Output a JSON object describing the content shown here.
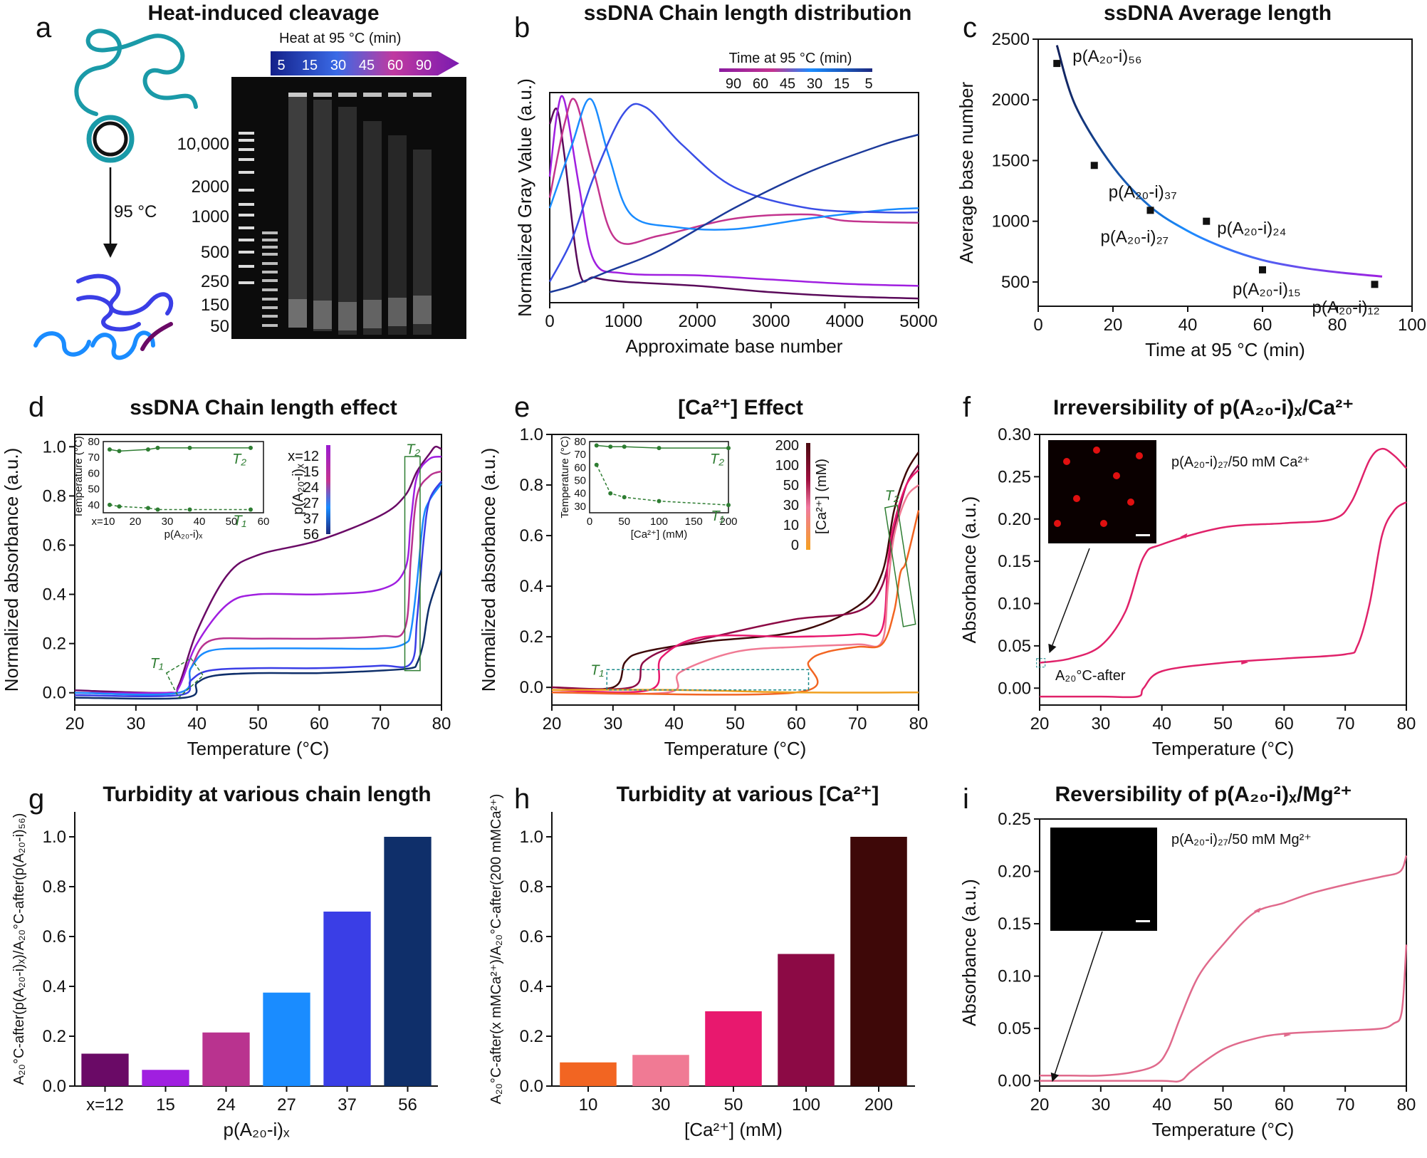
{
  "panels": {
    "a": {
      "label": "a",
      "title": "Heat-induced cleavage",
      "heat_label": "Heat at 95 °C (min)",
      "heat_times": [
        "5",
        "15",
        "30",
        "45",
        "60",
        "90"
      ],
      "arrow_label": "95 °C",
      "ladder": [
        "10,000",
        "2000",
        "1000",
        "500",
        "250",
        "150",
        "50"
      ]
    },
    "b": {
      "label": "b",
      "title": "ssDNA Chain length distribution"
    },
    "c": {
      "label": "c",
      "title": "ssDNA Average length"
    },
    "d": {
      "label": "d",
      "title": "ssDNA Chain length effect"
    },
    "e": {
      "label": "e",
      "title": "[Ca²⁺] Effect"
    },
    "f": {
      "label": "f",
      "title": "Irreversibility of p(A₂₀-i)ₓ/Ca²⁺",
      "annotation": "p(A₂₀-i)₂₇/50 mM Ca²⁺",
      "marker": "A₂₀°C-after"
    },
    "g": {
      "label": "g",
      "title": "Turbidity at various chain length"
    },
    "h": {
      "label": "h",
      "title": "Turbidity at various [Ca²⁺]"
    },
    "i": {
      "label": "i",
      "title": "Reversibility of p(A₂₀-i)ₓ/Mg²⁺",
      "annotation": "p(A₂₀-i)₂₇/50 mM Mg²⁺"
    }
  },
  "colors": {
    "len": [
      "#6a0a66",
      "#a01fe0",
      "#b9338f",
      "#1a8cff",
      "#3a3ee6",
      "#0f2f6a"
    ],
    "ca": [
      "#f26522",
      "#f07a94",
      "#e8186e",
      "#8c0a45",
      "#3e0808"
    ],
    "b_curves": [
      "#5a0a5a",
      "#a01fe0",
      "#c3348e",
      "#1a8cff",
      "#3a4ee6",
      "#1c3a9a"
    ],
    "f_curve": "#e0226a",
    "i_curve": "#e06a8c",
    "inset_green": "#2e7d32"
  },
  "chart_data": [
    {
      "id": "b",
      "type": "line",
      "xlabel": "Approximate base number",
      "ylabel": "Normalized Gray Value (a.u.)",
      "xlim": [
        0,
        5000
      ],
      "xticks": [
        0,
        1000,
        2000,
        3000,
        4000,
        5000
      ],
      "legend_title": "Time at 95 °C (min)",
      "legend_ticks": [
        "90",
        "60",
        "45",
        "30",
        "15",
        "5"
      ],
      "legend_position": "top-right",
      "series": [
        {
          "name": "90",
          "x": [
            0,
            100,
            200,
            400,
            600,
            1000,
            2000,
            3000,
            4000,
            5000
          ],
          "y": [
            0.85,
            0.92,
            0.7,
            0.15,
            0.12,
            0.1,
            0.08,
            0.05,
            0.03,
            0.02
          ]
        },
        {
          "name": "60",
          "x": [
            0,
            100,
            200,
            400,
            600,
            1000,
            2000,
            3000,
            4000,
            5000
          ],
          "y": [
            0.6,
            0.9,
            0.96,
            0.55,
            0.2,
            0.14,
            0.13,
            0.11,
            0.09,
            0.08
          ]
        },
        {
          "name": "45",
          "x": [
            0,
            200,
            350,
            600,
            900,
            1500,
            2500,
            3500,
            4000,
            5000
          ],
          "y": [
            0.5,
            0.85,
            0.96,
            0.62,
            0.3,
            0.32,
            0.4,
            0.42,
            0.39,
            0.38
          ]
        },
        {
          "name": "30",
          "x": [
            0,
            300,
            550,
            800,
            1100,
            1700,
            2500,
            3500,
            4500,
            5000
          ],
          "y": [
            0.45,
            0.75,
            0.97,
            0.7,
            0.42,
            0.36,
            0.35,
            0.4,
            0.44,
            0.45
          ]
        },
        {
          "name": "15",
          "x": [
            0,
            300,
            600,
            1000,
            1300,
            1800,
            2500,
            3500,
            4500,
            5000
          ],
          "y": [
            0.1,
            0.3,
            0.6,
            0.9,
            0.93,
            0.75,
            0.55,
            0.45,
            0.43,
            0.43
          ]
        },
        {
          "name": "5",
          "x": [
            0,
            300,
            800,
            1500,
            2500,
            3500,
            4500,
            5000
          ],
          "y": [
            0.05,
            0.08,
            0.15,
            0.25,
            0.45,
            0.62,
            0.75,
            0.8
          ]
        }
      ]
    },
    {
      "id": "c",
      "type": "scatter",
      "xlabel": "Time at 95 °C (min)",
      "ylabel": "Average base number",
      "xlim": [
        0,
        100
      ],
      "ylim": [
        300,
        2500
      ],
      "xticks": [
        0,
        20,
        40,
        60,
        80,
        100
      ],
      "yticks": [
        500,
        1000,
        1500,
        2000,
        2500
      ],
      "points": [
        {
          "x": 5,
          "y": 2300,
          "label": "p(A₂₀-i)₅₆"
        },
        {
          "x": 15,
          "y": 1460,
          "label": "p(A₂₀-i)₃₇"
        },
        {
          "x": 30,
          "y": 1090,
          "label": "p(A₂₀-i)₂₇"
        },
        {
          "x": 45,
          "y": 1000,
          "label": "p(A₂₀-i)₂₄"
        },
        {
          "x": 60,
          "y": 600,
          "label": "p(A₂₀-i)₁₅"
        },
        {
          "x": 90,
          "y": 480,
          "label": "p(A₂₀-i)₁₂"
        }
      ],
      "fit": {
        "x": [
          5,
          10,
          20,
          30,
          40,
          50,
          60,
          70,
          80,
          92
        ],
        "y": [
          2450,
          1950,
          1450,
          1120,
          920,
          780,
          680,
          620,
          580,
          545
        ]
      }
    },
    {
      "id": "d",
      "type": "line",
      "xlabel": "Temperature (°C)",
      "ylabel": "Normalized absorbance (a.u.)",
      "xlim": [
        20,
        80
      ],
      "ylim": [
        -0.05,
        1.05
      ],
      "xticks": [
        20,
        30,
        40,
        50,
        60,
        70,
        80
      ],
      "yticks": [
        0.0,
        0.2,
        0.4,
        0.6,
        0.8,
        1.0
      ],
      "legend_title": "p(A₂₀-i)ₓ",
      "legend_ticks": [
        "x=12",
        "15",
        "24",
        "27",
        "37",
        "56"
      ],
      "region_labels": [
        "T₁",
        "T₂"
      ],
      "series": [
        {
          "name": "x=12",
          "x": [
            20,
            35,
            37,
            40,
            45,
            50,
            60,
            70,
            74,
            76,
            78,
            79,
            80
          ],
          "y": [
            0.01,
            0.0,
            0.03,
            0.25,
            0.48,
            0.56,
            0.62,
            0.72,
            0.8,
            0.9,
            0.97,
            1.0,
            0.99
          ]
        },
        {
          "name": "15",
          "x": [
            20,
            35,
            37,
            40,
            45,
            50,
            60,
            70,
            74,
            75,
            76,
            78,
            80
          ],
          "y": [
            0.0,
            0.0,
            0.02,
            0.2,
            0.36,
            0.4,
            0.4,
            0.42,
            0.5,
            0.7,
            0.88,
            0.95,
            0.96
          ]
        },
        {
          "name": "24",
          "x": [
            20,
            37,
            39,
            42,
            50,
            60,
            70,
            74,
            75,
            76,
            78,
            80
          ],
          "y": [
            0.0,
            0.0,
            0.1,
            0.21,
            0.22,
            0.22,
            0.23,
            0.26,
            0.55,
            0.8,
            0.88,
            0.9
          ]
        },
        {
          "name": "27",
          "x": [
            20,
            37,
            39,
            42,
            50,
            60,
            70,
            74,
            75,
            76,
            77,
            78,
            80
          ],
          "y": [
            0.0,
            0.0,
            0.1,
            0.17,
            0.18,
            0.18,
            0.18,
            0.2,
            0.25,
            0.45,
            0.7,
            0.78,
            0.85
          ]
        },
        {
          "name": "37",
          "x": [
            20,
            37,
            39,
            42,
            50,
            60,
            70,
            75,
            76,
            77,
            78,
            80
          ],
          "y": [
            -0.01,
            -0.01,
            0.05,
            0.09,
            0.1,
            0.1,
            0.11,
            0.12,
            0.3,
            0.6,
            0.78,
            0.86
          ]
        },
        {
          "name": "56",
          "x": [
            20,
            38,
            40,
            43,
            50,
            60,
            70,
            75,
            76,
            77,
            78,
            80
          ],
          "y": [
            -0.02,
            -0.02,
            0.04,
            0.07,
            0.08,
            0.08,
            0.09,
            0.1,
            0.12,
            0.2,
            0.35,
            0.5
          ]
        }
      ],
      "inset": {
        "xlabel": "p(A₂₀-i)ₓ",
        "ylabel": "Temperature (°C)",
        "xlim": [
          10,
          60
        ],
        "ylim": [
          35,
          80
        ],
        "xticks": [
          "x=10",
          "20",
          "30",
          "40",
          "50",
          "60"
        ],
        "yticks": [
          40,
          50,
          60,
          70,
          80
        ],
        "T2": {
          "label": "T₂",
          "x": [
            12,
            15,
            24,
            27,
            37,
            56
          ],
          "y": [
            75,
            74,
            75,
            76,
            76,
            76
          ]
        },
        "T1": {
          "label": "T₁",
          "x": [
            12,
            15,
            24,
            27,
            37,
            56
          ],
          "y": [
            40,
            39,
            38,
            37,
            37,
            37
          ]
        }
      }
    },
    {
      "id": "e",
      "type": "line",
      "xlabel": "Temperature (°C)",
      "ylabel": "Normalized absorbance (a.u.)",
      "xlim": [
        20,
        80
      ],
      "ylim": [
        -0.07,
        1.0
      ],
      "xticks": [
        20,
        30,
        40,
        50,
        60,
        70,
        80
      ],
      "yticks": [
        0.0,
        0.2,
        0.4,
        0.6,
        0.8,
        1.0
      ],
      "legend_title": "[Ca²⁺] (mM)",
      "legend_ticks": [
        "200",
        "100",
        "50",
        "30",
        "10",
        "0"
      ],
      "region_labels": [
        "T₁",
        "T₂"
      ],
      "series": [
        {
          "name": "200",
          "x": [
            20,
            30,
            32,
            35,
            45,
            60,
            70,
            74,
            76,
            78,
            80
          ],
          "y": [
            0.0,
            0.0,
            0.1,
            0.14,
            0.18,
            0.22,
            0.32,
            0.45,
            0.7,
            0.85,
            0.93
          ]
        },
        {
          "name": "100",
          "x": [
            20,
            33,
            35,
            40,
            50,
            60,
            70,
            74,
            76,
            78,
            80
          ],
          "y": [
            0.0,
            0.0,
            0.1,
            0.16,
            0.22,
            0.27,
            0.3,
            0.4,
            0.62,
            0.8,
            0.88
          ]
        },
        {
          "name": "50",
          "x": [
            20,
            36,
            38,
            45,
            60,
            70,
            74,
            75,
            76,
            78,
            80
          ],
          "y": [
            -0.01,
            -0.01,
            0.12,
            0.2,
            0.2,
            0.21,
            0.23,
            0.5,
            0.65,
            0.8,
            0.86
          ]
        },
        {
          "name": "30",
          "x": [
            20,
            39,
            41,
            50,
            60,
            70,
            74,
            75,
            76,
            78,
            80
          ],
          "y": [
            -0.02,
            -0.02,
            0.06,
            0.14,
            0.16,
            0.17,
            0.18,
            0.4,
            0.6,
            0.75,
            0.8
          ]
        },
        {
          "name": "10",
          "x": [
            20,
            60,
            62,
            65,
            70,
            74,
            76,
            77,
            78,
            80
          ],
          "y": [
            -0.02,
            -0.02,
            0.1,
            0.14,
            0.16,
            0.17,
            0.3,
            0.45,
            0.5,
            0.7
          ]
        },
        {
          "name": "0",
          "x": [
            20,
            40,
            60,
            80
          ],
          "y": [
            -0.01,
            -0.01,
            -0.02,
            -0.02
          ]
        }
      ],
      "inset": {
        "xlabel": "[Ca²⁺] (mM)",
        "ylabel": "Temperature (°C)",
        "xlim": [
          0,
          200
        ],
        "ylim": [
          25,
          80
        ],
        "xticks": [
          "0",
          "50",
          "100",
          "150",
          "200"
        ],
        "yticks": [
          30,
          40,
          50,
          60,
          70,
          80
        ],
        "T2": {
          "label": "T₂",
          "x": [
            10,
            30,
            50,
            100,
            200
          ],
          "y": [
            77,
            76,
            76,
            75,
            75
          ]
        },
        "T1": {
          "label": "T₁",
          "x": [
            10,
            30,
            50,
            100,
            200
          ],
          "y": [
            62,
            40,
            37,
            34,
            31
          ]
        }
      }
    },
    {
      "id": "f",
      "type": "line",
      "xlabel": "Temperature (°C)",
      "ylabel": "Absorbance (a.u.)",
      "xlim": [
        20,
        80
      ],
      "ylim": [
        -0.02,
        0.3
      ],
      "xticks": [
        20,
        30,
        40,
        50,
        60,
        70,
        80
      ],
      "yticks": [
        0.0,
        0.05,
        0.1,
        0.15,
        0.2,
        0.25,
        0.3
      ],
      "heating": {
        "x": [
          20,
          30,
          36,
          37,
          40,
          50,
          60,
          70,
          72,
          74,
          76,
          78,
          80
        ],
        "y": [
          -0.01,
          -0.01,
          -0.01,
          0.0,
          0.02,
          0.03,
          0.035,
          0.04,
          0.05,
          0.1,
          0.18,
          0.21,
          0.22
        ]
      },
      "cooling": {
        "x": [
          80,
          78,
          76,
          74,
          71,
          68,
          60,
          50,
          40,
          37,
          34,
          30,
          25,
          20
        ],
        "y": [
          0.26,
          0.275,
          0.283,
          0.27,
          0.22,
          0.2,
          0.195,
          0.19,
          0.17,
          0.155,
          0.09,
          0.05,
          0.035,
          0.03
        ]
      }
    },
    {
      "id": "g",
      "type": "bar",
      "xlabel": "p(A₂₀-i)ₓ",
      "ylabel": "A₂₀°C-after(p(A₂₀-i)ₓ)/A₂₀°C-after(p(A₂₀-i)₅₆)",
      "categories": [
        "x=12",
        "15",
        "24",
        "27",
        "37",
        "56"
      ],
      "values": [
        0.13,
        0.065,
        0.215,
        0.375,
        0.7,
        1.0
      ],
      "ylim": [
        0,
        1.1
      ],
      "yticks": [
        0.0,
        0.2,
        0.4,
        0.6,
        0.8,
        1.0
      ]
    },
    {
      "id": "h",
      "type": "bar",
      "xlabel": "[Ca²⁺] (mM)",
      "ylabel": "A₂₀°C-after(x mMCa²⁺)/A₂₀°C-after(200 mMCa²⁺)",
      "categories": [
        "10",
        "30",
        "50",
        "100",
        "200"
      ],
      "values": [
        0.095,
        0.125,
        0.3,
        0.53,
        1.0
      ],
      "ylim": [
        0,
        1.1
      ],
      "yticks": [
        0.0,
        0.2,
        0.4,
        0.6,
        0.8,
        1.0
      ]
    },
    {
      "id": "i",
      "type": "line",
      "xlabel": "Temperature (°C)",
      "ylabel": "Absorbance (a.u.)",
      "xlim": [
        20,
        80
      ],
      "ylim": [
        -0.005,
        0.25
      ],
      "xticks": [
        20,
        30,
        40,
        50,
        60,
        70,
        80
      ],
      "yticks": [
        0.0,
        0.05,
        0.1,
        0.15,
        0.2,
        0.25
      ],
      "heating": {
        "x": [
          20,
          30,
          40,
          43,
          45,
          50,
          55,
          60,
          70,
          76,
          78,
          79,
          79.5,
          80
        ],
        "y": [
          0.0,
          0.0,
          0.0,
          0.0,
          0.01,
          0.03,
          0.04,
          0.045,
          0.048,
          0.05,
          0.055,
          0.06,
          0.08,
          0.13
        ]
      },
      "cooling": {
        "x": [
          80,
          79,
          76,
          72,
          65,
          60,
          55,
          50,
          46,
          43,
          41,
          39,
          35,
          30,
          25,
          20
        ],
        "y": [
          0.215,
          0.2,
          0.195,
          0.19,
          0.18,
          0.17,
          0.16,
          0.13,
          0.1,
          0.06,
          0.03,
          0.015,
          0.008,
          0.005,
          0.005,
          0.005
        ]
      }
    }
  ]
}
